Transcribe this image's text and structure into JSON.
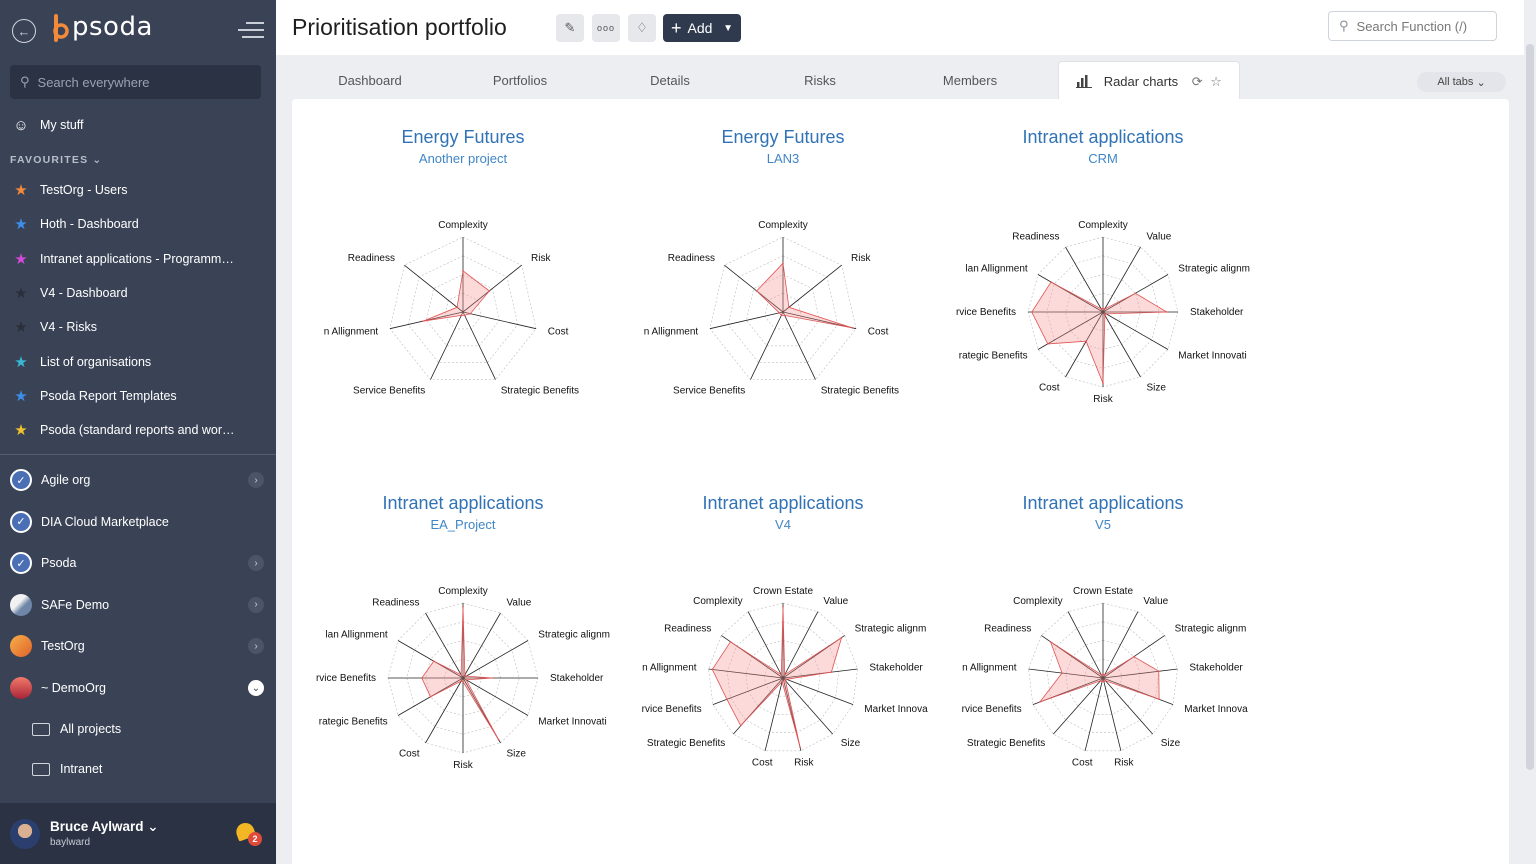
{
  "sidebar": {
    "logo_text": "psoda",
    "search_placeholder": "Search everywhere",
    "my_stuff": "My stuff",
    "favourites_header": "FAVOURITES",
    "favourites": [
      {
        "label": "TestOrg - Users",
        "color": "#f28a3c"
      },
      {
        "label": "Hoth - Dashboard",
        "color": "#3d8ee8"
      },
      {
        "label": "Intranet applications - Programme…",
        "color": "#d34ad8"
      },
      {
        "label": "V4 - Dashboard",
        "color": "#2a2f3a"
      },
      {
        "label": "V4 - Risks",
        "color": "#2a2f3a"
      },
      {
        "label": "List of organisations",
        "color": "#37b9d6"
      },
      {
        "label": "Psoda Report Templates",
        "color": "#3d8ee8"
      },
      {
        "label": "Psoda (standard reports and work…",
        "color": "#f2c12e"
      }
    ],
    "orgs": [
      {
        "label": "Agile org",
        "expanded": false
      },
      {
        "label": "DIA Cloud Marketplace",
        "expanded": null
      },
      {
        "label": "Psoda",
        "expanded": false
      },
      {
        "label": "SAFe Demo",
        "expanded": false
      },
      {
        "label": "TestOrg",
        "expanded": false
      },
      {
        "label": "~ DemoOrg",
        "expanded": true
      }
    ],
    "sub_items": [
      "All projects",
      "Intranet"
    ],
    "user": {
      "name": "Bruce Aylward",
      "username": "baylward",
      "notifications": "2"
    }
  },
  "header": {
    "title": "Prioritisation portfolio",
    "add_label": "Add",
    "search_placeholder": "Search Function (/)"
  },
  "tabs": {
    "items": [
      "Dashboard",
      "Portfolios",
      "Details",
      "Risks",
      "Members"
    ],
    "active": "Radar charts",
    "all_tabs": "All tabs"
  },
  "chart_data": [
    {
      "type": "radar",
      "title": "Energy Futures",
      "subtitle": "Another project",
      "axes": [
        "Complexity",
        "Risk",
        "Cost",
        "Strategic Benefits",
        "Service Benefits",
        "n Allignment",
        "Readiness"
      ],
      "values": [
        0.55,
        0.45,
        0.1,
        0.05,
        0.05,
        0.55,
        0.1
      ],
      "max": 1
    },
    {
      "type": "radar",
      "title": "Energy Futures",
      "subtitle": "LAN3",
      "axes": [
        "Complexity",
        "Risk",
        "Cost",
        "Strategic Benefits",
        "Service Benefits",
        "n Allignment",
        "Readiness"
      ],
      "values": [
        0.65,
        0.1,
        0.95,
        0.05,
        0.05,
        0.05,
        0.45
      ],
      "max": 1
    },
    {
      "type": "radar",
      "title": "Intranet applications",
      "subtitle": "CRM",
      "axes": [
        "Complexity",
        "Value",
        "Strategic alignm",
        "Stakeholder",
        "Market Innovati",
        "Size",
        "Risk",
        "Cost",
        "rategic Benefits",
        "rvice Benefits",
        "lan Allignment",
        "Readiness"
      ],
      "values": [
        0.05,
        0.05,
        0.5,
        0.85,
        0.05,
        0.05,
        0.95,
        0.45,
        0.85,
        0.95,
        0.8,
        0.05
      ],
      "max": 1
    },
    {
      "type": "radar",
      "title": "Intranet applications",
      "subtitle": "EA_Project",
      "axes": [
        "Complexity",
        "Value",
        "Strategic alignm",
        "Stakeholder",
        "Market Innovati",
        "Size",
        "Risk",
        "Cost",
        "rategic Benefits",
        "rvice Benefits",
        "lan Allignment",
        "Readiness"
      ],
      "values": [
        0.95,
        0.05,
        0.05,
        0.4,
        0.05,
        0.95,
        0.05,
        0.05,
        0.5,
        0.55,
        0.45,
        0.05
      ],
      "max": 1
    },
    {
      "type": "radar",
      "title": "Intranet applications",
      "subtitle": "V4",
      "axes": [
        "Crown Estate",
        "Value",
        "Strategic alignm",
        "Stakeholder",
        "Market Innova",
        "Size",
        "Risk",
        "Cost",
        "Strategic Benefits",
        "rvice Benefits",
        "n Allignment",
        "Readiness",
        "Complexity"
      ],
      "values": [
        0.95,
        0.05,
        0.95,
        0.65,
        0.05,
        0.05,
        0.95,
        0.05,
        0.85,
        0.8,
        0.95,
        0.85,
        0.05
      ],
      "max": 1
    },
    {
      "type": "radar",
      "title": "Intranet applications",
      "subtitle": "V5",
      "axes": [
        "Crown Estate",
        "Value",
        "Strategic alignm",
        "Stakeholder",
        "Market Innova",
        "Size",
        "Risk",
        "Cost",
        "Strategic Benefits",
        "rvice Benefits",
        "n Allignment",
        "Readiness",
        "Complexity"
      ],
      "values": [
        0.05,
        0.05,
        0.5,
        0.75,
        0.8,
        0.05,
        0.05,
        0.05,
        0.05,
        0.9,
        0.55,
        0.85,
        0.05
      ],
      "max": 1
    }
  ],
  "colors": {
    "radar_fill": "rgba(250,150,150,0.35)",
    "radar_stroke": "#e05252",
    "title": "#3173b5",
    "sidebar": "#3a4356"
  }
}
